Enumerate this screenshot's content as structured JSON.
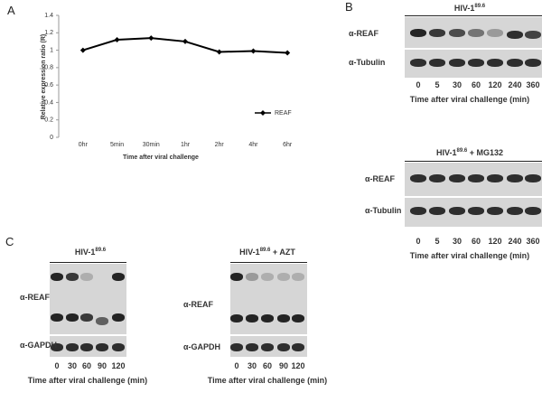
{
  "panel_labels": [
    "A",
    "B",
    "C"
  ],
  "chart_data": {
    "type": "line",
    "xlabel": "Time after viral challenge",
    "ylabel": "Relative expression ratio (R)",
    "categories": [
      "0hr",
      "5min",
      "30min",
      "1hr",
      "2hr",
      "4hr",
      "6hr"
    ],
    "series": [
      {
        "name": "REAF",
        "color": "#000000",
        "values": [
          1.0,
          1.12,
          1.14,
          1.1,
          0.98,
          0.99,
          0.97
        ]
      }
    ],
    "ylim": [
      0,
      1.4
    ],
    "yticks": [
      0,
      0.2,
      0.4,
      0.6,
      0.8,
      1,
      1.2,
      1.4
    ],
    "legend": "lower right"
  },
  "blots": [
    {
      "title": {
        "virus": "HIV-1",
        "strain": "89.6"
      },
      "rows": [
        "α-REAF",
        "α-Tubulin"
      ],
      "lanes": [
        "0",
        "5",
        "30",
        "60",
        "120",
        "240",
        "360"
      ],
      "xlabel": "Time after viral challenge (min)"
    },
    {
      "title": {
        "virus": "HIV-1",
        "strain": "89.6",
        "treatment": "+ MG132"
      },
      "rows": [
        "α-REAF",
        "α-Tubulin"
      ],
      "lanes": [
        "0",
        "5",
        "30",
        "60",
        "120",
        "240",
        "360"
      ],
      "xlabel": "Time after viral challenge (min)"
    },
    {
      "title": {
        "virus": "HIV-1",
        "strain": "89.6"
      },
      "rows": [
        "α-REAF",
        "α-GAPDH"
      ],
      "lanes": [
        "0",
        "30",
        "60",
        "90",
        "120"
      ],
      "xlabel": "Time after viral challenge (min)"
    },
    {
      "title": {
        "virus": "HIV-1",
        "strain": "89.6",
        "treatment": "+ AZT"
      },
      "rows": [
        "α-REAF",
        "α-GAPDH"
      ],
      "lanes": [
        "0",
        "30",
        "60",
        "90",
        "120"
      ],
      "xlabel": "Time after viral challenge (min)"
    }
  ]
}
